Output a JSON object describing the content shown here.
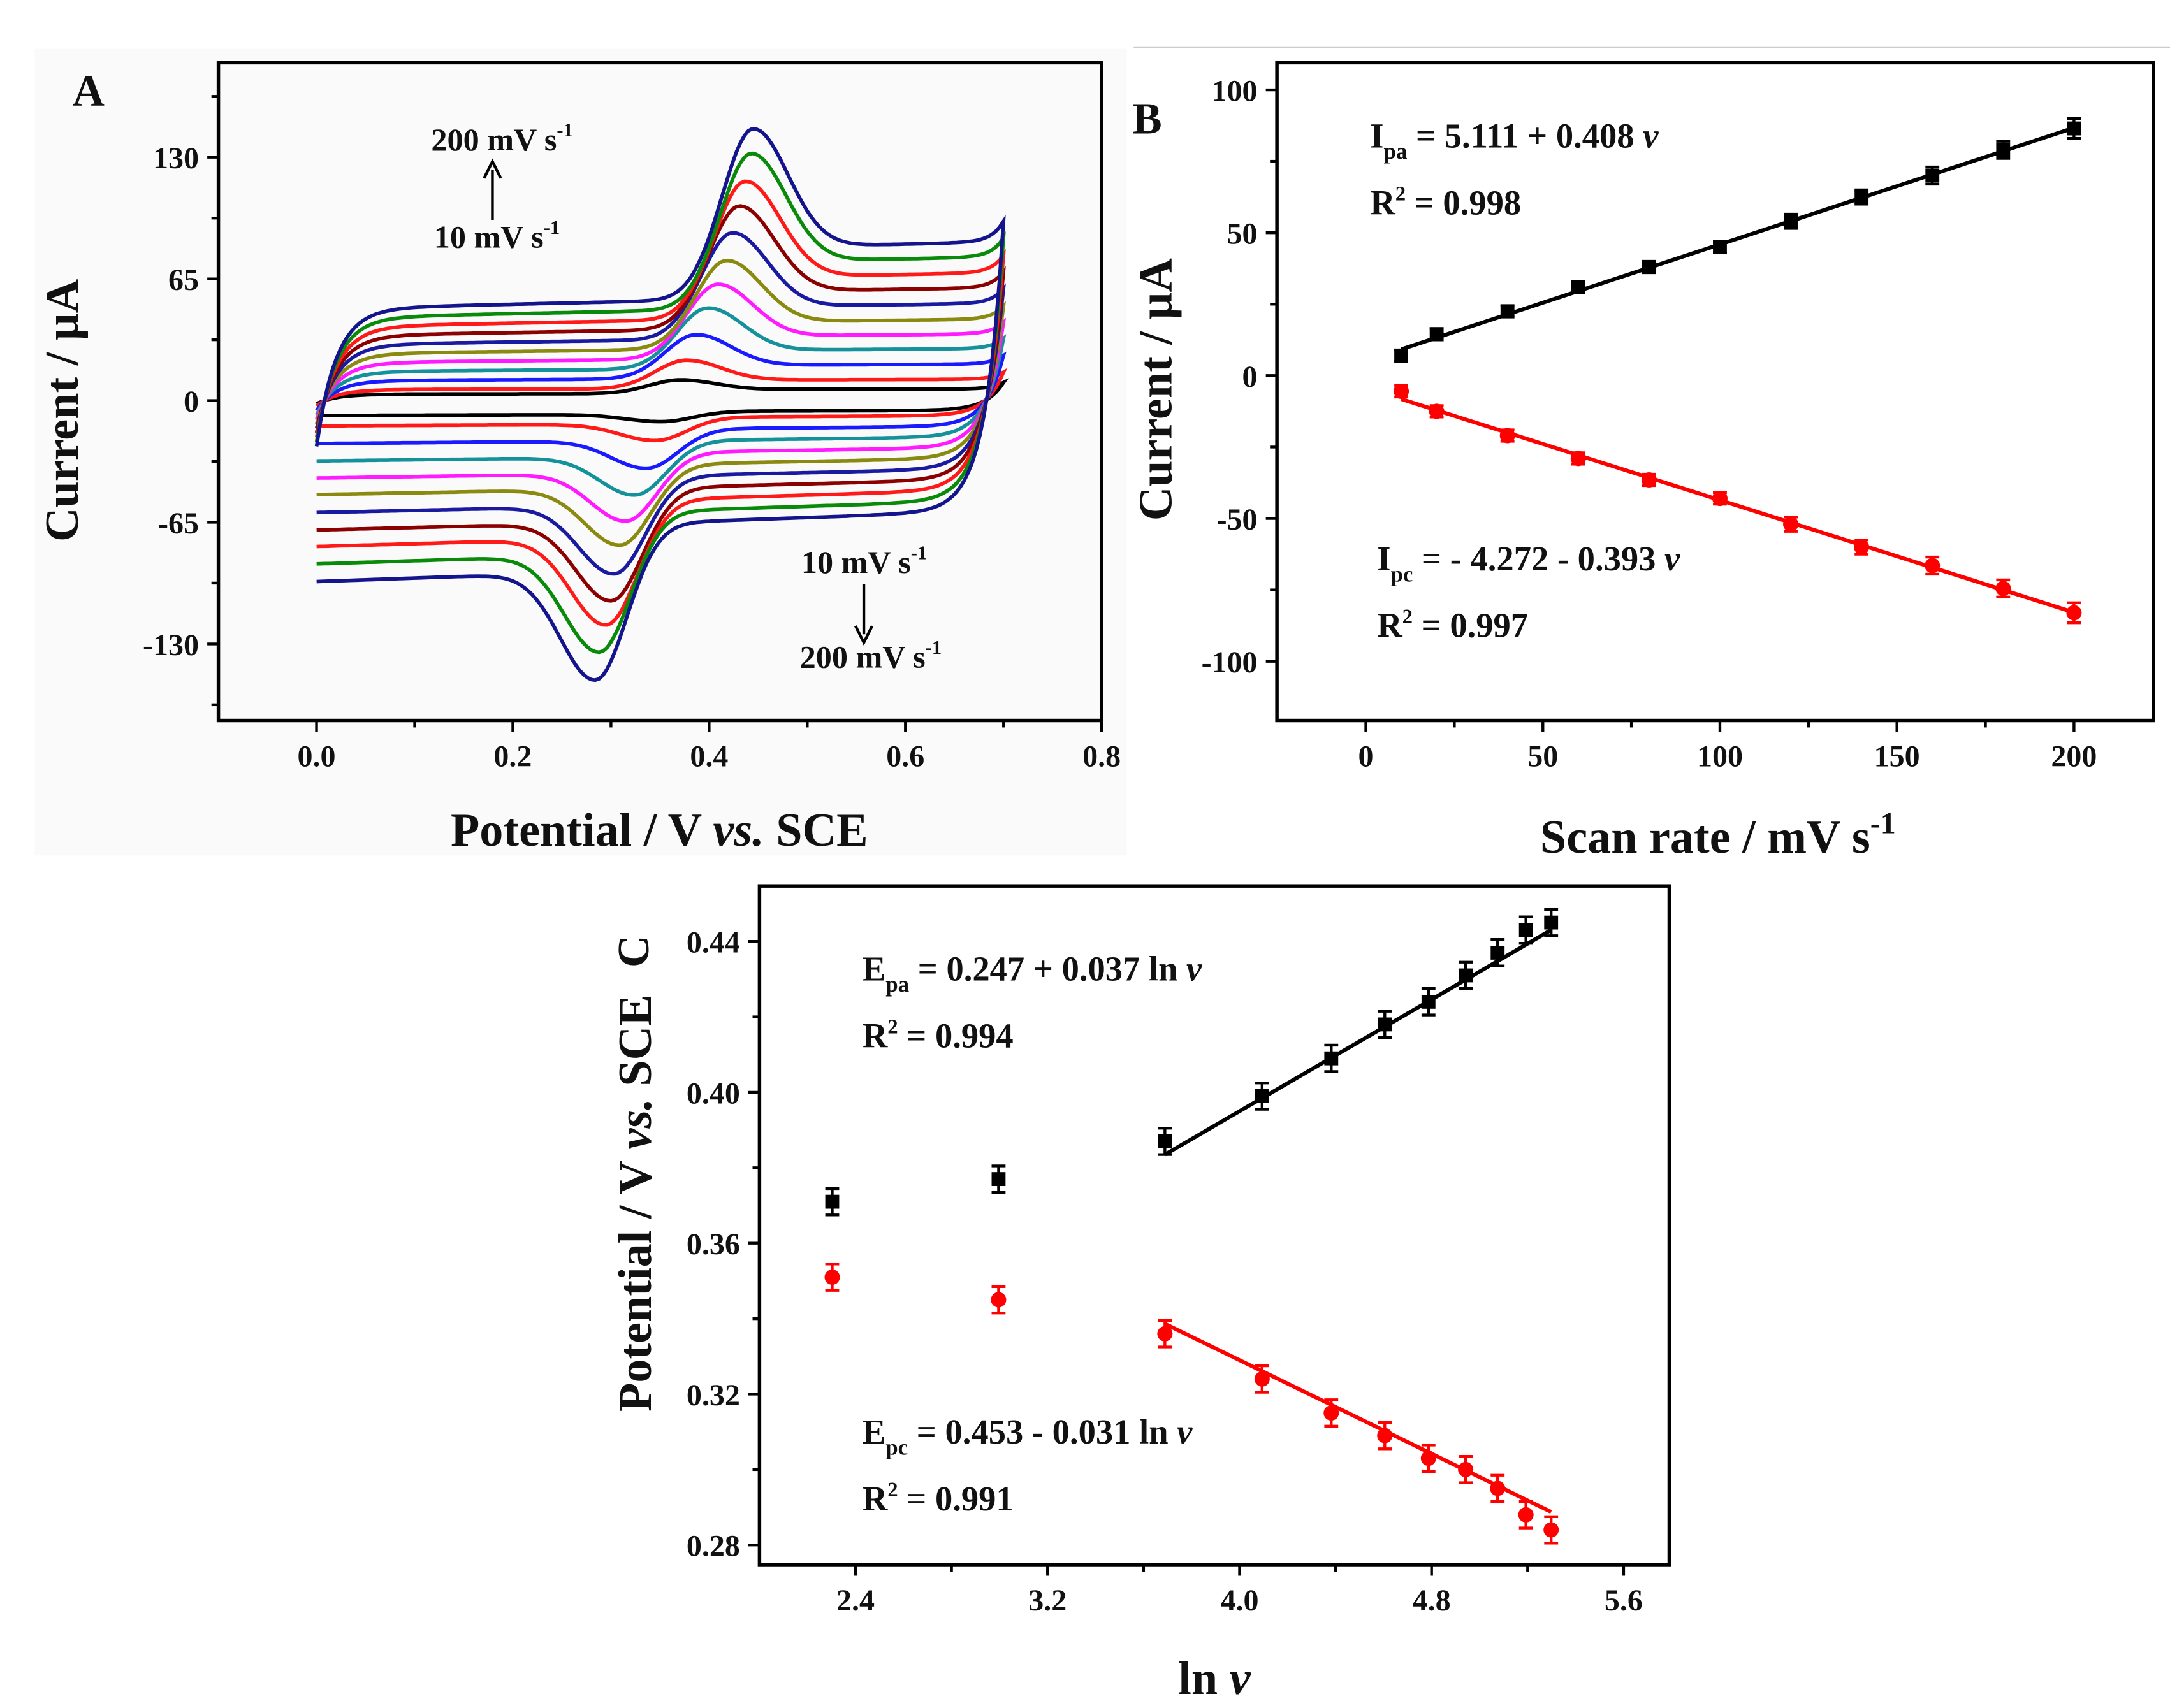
{
  "chart_data": [
    {
      "panel": "A",
      "type": "line",
      "title": "A",
      "xlabel": {
        "pre": "Potential / V ",
        "italic": "vs.",
        "post": " SCE"
      },
      "ylabel": "Current / µA",
      "xlim": [
        -0.1,
        0.8
      ],
      "ylim": [
        -170.9,
        180.5
      ],
      "xticks": [
        0.0,
        0.2,
        0.4,
        0.6,
        0.8
      ],
      "xtick_labels": [
        "0.0",
        "0.2",
        "0.4",
        "0.6",
        "0.8"
      ],
      "xminor": [
        0.1,
        0.3,
        0.5,
        0.7
      ],
      "yticks": [
        130,
        65,
        0,
        -65,
        -130
      ],
      "ytick_labels": [
        "130",
        "65",
        "0",
        "-65",
        "-130"
      ],
      "yminor": [
        162.5,
        97.5,
        32.5,
        -32.5,
        -97.5,
        -162.5
      ],
      "scan_rates_mV_s": [
        10,
        20,
        40,
        60,
        80,
        100,
        120,
        140,
        160,
        180,
        200
      ],
      "colors": [
        "#000000",
        "#ff1a1a",
        "#1a1aff",
        "#14919b",
        "#ff1aff",
        "#8a8a10",
        "#1a1aa0",
        "#8b0000",
        "#ff1a1a",
        "#0a8a0a",
        "#14148c"
      ],
      "potential_range_V": [
        0.0,
        0.7
      ],
      "annotations": [
        {
          "text": "200 mV s",
          "sup": "-1"
        },
        {
          "text": "10 mV s",
          "sup": "-1"
        },
        {
          "text": "10 mV s",
          "sup": "-1"
        },
        {
          "text": "200 mV s",
          "sup": "-1"
        }
      ]
    },
    {
      "panel": "B",
      "type": "scatter",
      "title": "B",
      "xlabel": {
        "pre": "Scan rate / mV s",
        "sup": "-1"
      },
      "ylabel": "Current / µA",
      "xlim": [
        -25.1,
        222.4
      ],
      "ylim": [
        -120.7,
        109.5
      ],
      "xticks": [
        0,
        50,
        100,
        150,
        200
      ],
      "xtick_labels": [
        "0",
        "50",
        "100",
        "150",
        "200"
      ],
      "xminor": [
        25,
        75,
        125,
        175
      ],
      "yticks": [
        100,
        50,
        0,
        -50,
        -100
      ],
      "ytick_labels": [
        "100",
        "50",
        "0",
        "-50",
        "-100"
      ],
      "yminor": [
        75,
        25,
        -25,
        -75
      ],
      "x": [
        10,
        20,
        40,
        60,
        80,
        100,
        120,
        140,
        160,
        180,
        200
      ],
      "series": [
        {
          "name": "Ipa",
          "color": "#000000",
          "marker": "square",
          "values": [
            7,
            14.5,
            22.5,
            31,
            38,
            45,
            54,
            62.5,
            70,
            79,
            86.5
          ],
          "error": [
            2,
            2,
            2,
            2,
            2,
            2,
            2.5,
            2.5,
            3,
            3,
            3.5
          ],
          "fit": {
            "intercept": 5.111,
            "slope": 0.408
          },
          "equation": {
            "main": "I",
            "sub": "pa",
            "rest": " = 5.111 + 0.408 ",
            "var": "v"
          },
          "r2": {
            "main": "R",
            "sup": "2",
            "rest": " = 0.998"
          }
        },
        {
          "name": "Ipc",
          "color": "#ff0000",
          "marker": "circle",
          "values": [
            -5.5,
            -12.5,
            -21,
            -29,
            -36.5,
            -43,
            -52,
            -60,
            -66.5,
            -74.5,
            -83
          ],
          "error": [
            2,
            2,
            2,
            2,
            2,
            2,
            2.5,
            2.5,
            3,
            3,
            3.5
          ],
          "fit": {
            "intercept": -4.272,
            "slope": -0.393
          },
          "equation": {
            "main": "I",
            "sub": "pc",
            "rest": " = - 4.272 - 0.393 ",
            "var": "v"
          },
          "r2": {
            "main": "R",
            "sup": "2",
            "rest": " = 0.997"
          }
        }
      ]
    },
    {
      "panel": "C",
      "type": "scatter",
      "title": "C",
      "xlabel": {
        "pre": "ln ",
        "italic": "v"
      },
      "ylabel": {
        "pre": "Potential / V ",
        "italic": "vs.",
        "post": " SCE"
      },
      "xlim": [
        2.0,
        5.79
      ],
      "ylim": [
        0.2748,
        0.4547
      ],
      "xticks": [
        2.4,
        3.2,
        4.0,
        4.8,
        5.6
      ],
      "xtick_labels": [
        "2.4",
        "3.2",
        "4.0",
        "4.8",
        "5.6"
      ],
      "xminor": [
        2.8,
        3.6,
        4.4,
        5.2
      ],
      "yticks": [
        0.44,
        0.4,
        0.36,
        0.32,
        0.28
      ],
      "ytick_labels": [
        "0.44",
        "0.40",
        "0.36",
        "0.32",
        "0.28"
      ],
      "yminor": [
        0.42,
        0.38,
        0.34,
        0.3
      ],
      "x": [
        2.303,
        2.996,
        3.689,
        4.094,
        4.382,
        4.605,
        4.787,
        4.942,
        5.075,
        5.193,
        5.298
      ],
      "fit_range": [
        3.689,
        5.298
      ],
      "series": [
        {
          "name": "Epa",
          "color": "#000000",
          "marker": "square",
          "values": [
            0.371,
            0.377,
            0.387,
            0.399,
            0.409,
            0.418,
            0.424,
            0.431,
            0.437,
            0.443,
            0.445
          ],
          "error": 0.0035,
          "fit": {
            "intercept": 0.247,
            "slope": 0.037
          },
          "equation": {
            "main": "E",
            "sub": "pa",
            "rest": " = 0.247 + 0.037 ln ",
            "var": "v"
          },
          "r2": {
            "main": "R",
            "sup": "2",
            "rest": " = 0.994"
          }
        },
        {
          "name": "Epc",
          "color": "#ff0000",
          "marker": "circle",
          "values": [
            0.351,
            0.345,
            0.336,
            0.324,
            0.315,
            0.309,
            0.303,
            0.3,
            0.295,
            0.288,
            0.284
          ],
          "error": 0.0035,
          "fit": {
            "intercept": 0.453,
            "slope": -0.031
          },
          "equation": {
            "main": "E",
            "sub": "pc",
            "rest": " = 0.453 - 0.031 ln ",
            "var": "v"
          },
          "r2": {
            "main": "R",
            "sup": "2",
            "rest": " = 0.991"
          }
        }
      ]
    }
  ]
}
